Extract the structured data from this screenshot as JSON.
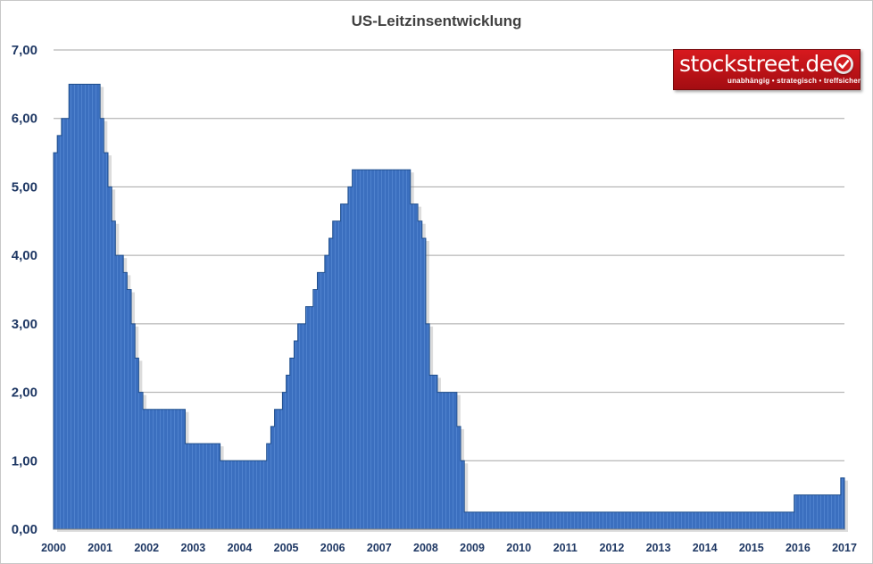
{
  "chart_data": {
    "type": "area",
    "title": "US-Leitzinsentwicklung",
    "xlabel": "",
    "ylabel": "",
    "ylim": [
      0,
      7
    ],
    "xlim": [
      2000,
      2017
    ],
    "y_ticks": [
      "0,00",
      "1,00",
      "2,00",
      "3,00",
      "4,00",
      "5,00",
      "6,00",
      "7,00"
    ],
    "x_ticks": [
      "2000",
      "2001",
      "2002",
      "2003",
      "2004",
      "2005",
      "2006",
      "2007",
      "2008",
      "2009",
      "2010",
      "2011",
      "2012",
      "2013",
      "2014",
      "2015",
      "2016",
      "2017"
    ],
    "grid": true,
    "legend": "none",
    "fill_color": "#3b6fbf",
    "edge_color": "#1f4e8c",
    "series": [
      {
        "x": [
          2000.0,
          2000.08,
          2000.17,
          2000.25,
          2000.33,
          2000.42,
          2000.5,
          2000.58,
          2000.67,
          2000.75,
          2000.83,
          2000.92,
          2001.0,
          2001.08,
          2001.17,
          2001.25,
          2001.33,
          2001.42,
          2001.5,
          2001.58,
          2001.67,
          2001.75,
          2001.83,
          2001.92,
          2002.0,
          2002.25,
          2002.5,
          2002.75,
          2002.83,
          2002.92,
          2003.0,
          2003.25,
          2003.5,
          2003.58,
          2003.75,
          2004.0,
          2004.25,
          2004.5,
          2004.58,
          2004.67,
          2004.75,
          2004.83,
          2004.92,
          2005.0,
          2005.08,
          2005.17,
          2005.25,
          2005.33,
          2005.42,
          2005.5,
          2005.58,
          2005.67,
          2005.75,
          2005.83,
          2005.92,
          2006.0,
          2006.08,
          2006.17,
          2006.25,
          2006.33,
          2006.42,
          2006.5,
          2006.75,
          2007.0,
          2007.25,
          2007.5,
          2007.58,
          2007.67,
          2007.75,
          2007.83,
          2007.92,
          2008.0,
          2008.08,
          2008.17,
          2008.25,
          2008.33,
          2008.42,
          2008.5,
          2008.58,
          2008.67,
          2008.75,
          2008.83,
          2008.92,
          2009.0,
          2010.0,
          2011.0,
          2012.0,
          2013.0,
          2014.0,
          2015.0,
          2015.83,
          2015.92,
          2016.0,
          2016.5,
          2016.83,
          2016.92,
          2017.0
        ],
        "values": [
          5.5,
          5.75,
          6.0,
          6.0,
          6.5,
          6.5,
          6.5,
          6.5,
          6.5,
          6.5,
          6.5,
          6.5,
          6.0,
          5.5,
          5.0,
          4.5,
          4.0,
          4.0,
          3.75,
          3.5,
          3.0,
          2.5,
          2.0,
          1.75,
          1.75,
          1.75,
          1.75,
          1.75,
          1.25,
          1.25,
          1.25,
          1.25,
          1.25,
          1.0,
          1.0,
          1.0,
          1.0,
          1.0,
          1.25,
          1.5,
          1.75,
          1.75,
          2.0,
          2.25,
          2.5,
          2.75,
          3.0,
          3.0,
          3.25,
          3.25,
          3.5,
          3.75,
          3.75,
          4.0,
          4.25,
          4.5,
          4.5,
          4.75,
          4.75,
          5.0,
          5.25,
          5.25,
          5.25,
          5.25,
          5.25,
          5.25,
          5.25,
          4.75,
          4.75,
          4.5,
          4.25,
          3.0,
          2.25,
          2.25,
          2.0,
          2.0,
          2.0,
          2.0,
          2.0,
          1.5,
          1.0,
          0.25,
          0.25,
          0.25,
          0.25,
          0.25,
          0.25,
          0.25,
          0.25,
          0.25,
          0.25,
          0.5,
          0.5,
          0.5,
          0.5,
          0.75,
          0.75
        ]
      }
    ]
  },
  "logo": {
    "name": "stockstreet.de",
    "slogan": "unabhängig • strategisch • treffsicher",
    "icon": "check-icon",
    "color": "#c8161d"
  }
}
